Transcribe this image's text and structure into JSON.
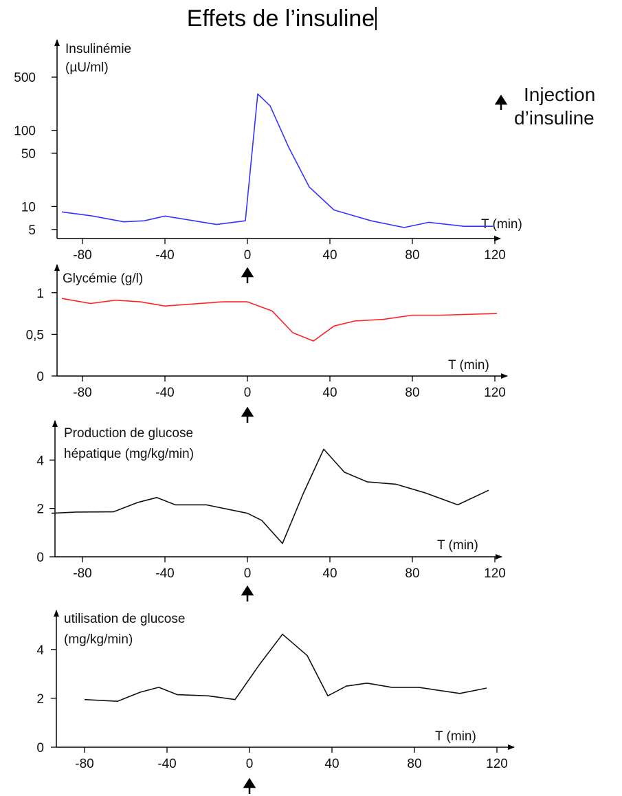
{
  "page": {
    "title": "Effets de l’insuline"
  },
  "legend": {
    "label_line1": "Injection",
    "label_line2": "d’insuline"
  },
  "chart_data": [
    {
      "type": "line",
      "ylabel_lines": [
        "Insulinémie",
        "(µU/ml)"
      ],
      "xlabel": "T (min)",
      "y_scale": "log",
      "ylim": [
        3.8,
        1200
      ],
      "xlim": [
        -100,
        128
      ],
      "yticks": [
        5,
        10,
        50,
        100,
        500
      ],
      "ytick_labels": [
        "5",
        "10",
        "50",
        "100",
        "500"
      ],
      "xticks": [
        -80,
        -40,
        0,
        40,
        80,
        120
      ],
      "xtick_labels": [
        "-80",
        "-40",
        "0",
        "40",
        "80",
        "120"
      ],
      "color": "#3333ff",
      "x": [
        -90,
        -75,
        -60,
        -50,
        -40,
        -15,
        -1,
        5,
        11,
        20,
        30,
        42,
        60,
        76,
        88,
        105,
        119
      ],
      "y": [
        8.5,
        7.5,
        6.3,
        6.5,
        7.5,
        5.8,
        6.5,
        300,
        210,
        60,
        18,
        9,
        6.5,
        5.3,
        6.2,
        5.5,
        5.5
      ]
    },
    {
      "type": "line",
      "ylabel_lines": [
        "Glycémie (g/l)"
      ],
      "xlabel": "T (min)",
      "ylim": [
        0,
        1.13
      ],
      "xlim": [
        -100,
        128
      ],
      "yticks": [
        0,
        0.5,
        1
      ],
      "ytick_labels": [
        "0",
        "0,5",
        "1"
      ],
      "xticks": [
        -80,
        -40,
        0,
        40,
        80,
        120
      ],
      "xtick_labels": [
        "-80",
        "-40",
        "0",
        "40",
        "80",
        "120"
      ],
      "color": "#ff2222",
      "x": [
        -90,
        -76,
        -64,
        -52,
        -40,
        -12,
        0,
        12,
        22,
        32,
        42,
        52,
        66,
        80,
        94,
        121
      ],
      "y": [
        0.93,
        0.87,
        0.91,
        0.89,
        0.84,
        0.89,
        0.89,
        0.78,
        0.52,
        0.42,
        0.6,
        0.66,
        0.68,
        0.73,
        0.73,
        0.75
      ]
    },
    {
      "type": "line",
      "ylabel_lines": [
        "Production de glucose",
        "hépatique (mg/kg/min)"
      ],
      "xlabel": "T (min)",
      "ylim": [
        0,
        5.4
      ],
      "xlim": [
        -100,
        128
      ],
      "yticks": [
        0,
        2,
        4
      ],
      "ytick_labels": [
        "0",
        "2",
        "4"
      ],
      "xticks": [
        -80,
        -40,
        0,
        40,
        80,
        120
      ],
      "xtick_labels": [
        "-80",
        "-40",
        "0",
        "40",
        "80",
        "120"
      ],
      "color": "#111111",
      "x": [
        -95,
        -83,
        -65,
        -53,
        -44,
        -35,
        -20,
        0,
        7,
        17,
        27,
        37,
        47,
        58,
        72,
        86,
        102,
        117
      ],
      "y": [
        1.8,
        1.85,
        1.86,
        2.25,
        2.45,
        2.15,
        2.15,
        1.8,
        1.5,
        0.55,
        2.6,
        4.45,
        3.5,
        3.1,
        3.0,
        2.65,
        2.15,
        2.75
      ]
    },
    {
      "type": "line",
      "ylabel_lines": [
        "utilisation de glucose",
        "(mg/kg/min)"
      ],
      "xlabel": "T (min)",
      "ylim": [
        0,
        5.4
      ],
      "xlim": [
        -100,
        128
      ],
      "yticks": [
        0,
        2,
        4
      ],
      "ytick_labels": [
        "0",
        "2",
        "4"
      ],
      "xticks": [
        -80,
        -40,
        0,
        40,
        80,
        120
      ],
      "xtick_labels": [
        "-80",
        "-40",
        "0",
        "40",
        "80",
        "120"
      ],
      "color": "#111111",
      "x": [
        -80,
        -64,
        -53,
        -44,
        -35,
        -20,
        -7,
        5,
        16,
        28,
        38,
        47,
        57,
        69,
        82,
        102,
        115
      ],
      "y": [
        1.95,
        1.88,
        2.25,
        2.45,
        2.15,
        2.1,
        1.95,
        3.4,
        4.62,
        3.75,
        2.1,
        2.5,
        2.62,
        2.45,
        2.45,
        2.2,
        2.42
      ]
    }
  ]
}
